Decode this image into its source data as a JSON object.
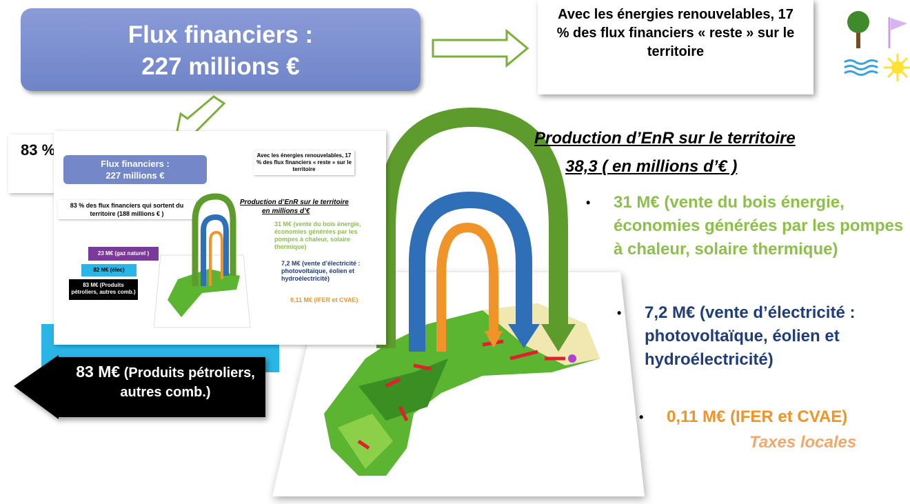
{
  "header": {
    "title_line1": "Flux financiers :",
    "title_line2": "227 millions €"
  },
  "callout": {
    "text": "Avec les énergies renouvelables, 17 % des flux financiers « reste » sur le territoire"
  },
  "outflow": {
    "partial_label": "83 %",
    "arrow_amount": "83 M€",
    "arrow_text": "(Produits pétroliers, autres comb.)"
  },
  "inset": {
    "title_line1": "Flux financiers :",
    "title_line2": "227 millions €",
    "callout": "Avec les énergies renouvelables, 17 % des flux financiers « reste » sur le territoire",
    "outflow_label": "83 % des flux financiers qui sortent du territoire (188 millions € )",
    "arrows": [
      "23 M€ (gaz naturel )",
      "82 M€ (élec)",
      "83 M€ (Produits pétroliers, autres comb.)"
    ],
    "production_title": "Production d’EnR sur le territoire",
    "production_unit": "en millions d’€",
    "items": [
      "31 M€ (vente du bois énergie, économies générées par les pompes à chaleur, solaire thermique)",
      "7,2 M€ (vente d’électricité : photovoltaïque, éolien et hydroélectricité)",
      "0,11 M€ (IFER et CVAE)"
    ]
  },
  "production": {
    "title": "Production d’EnR sur le territoire",
    "total": "38,3",
    "unit": "( en millions d’€ )",
    "items": [
      {
        "text": "31 M€ (vente du bois énergie, économies générées par les pompes à chaleur, solaire thermique)"
      },
      {
        "text": "7,2 M€ (vente d’électricité : photovoltaïque, éolien et hydroélectricité)"
      },
      {
        "text": "0,11 M€ (IFER et CVAE)",
        "note": "Taxes locales"
      }
    ]
  }
}
